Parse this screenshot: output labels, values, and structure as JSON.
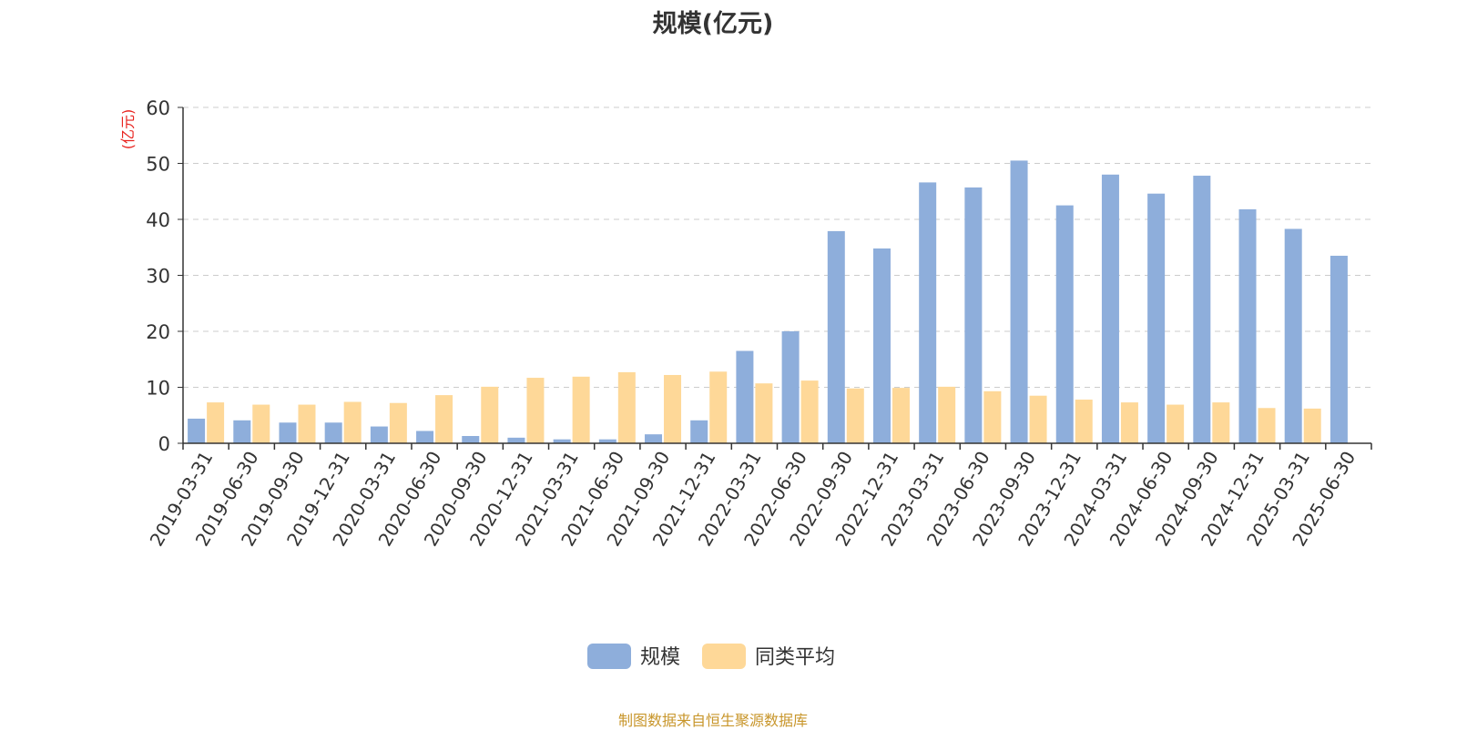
{
  "chart_data": {
    "type": "bar",
    "title": "规模(亿元)",
    "ylabel": "(亿元)",
    "ylim": [
      0,
      60
    ],
    "yticks": [
      0,
      10,
      20,
      30,
      40,
      50,
      60
    ],
    "grid": true,
    "legend_position": "bottom",
    "categories": [
      "2019-03-31",
      "2019-06-30",
      "2019-09-30",
      "2019-12-31",
      "2020-03-31",
      "2020-06-30",
      "2020-09-30",
      "2020-12-31",
      "2021-03-31",
      "2021-06-30",
      "2021-09-30",
      "2021-12-31",
      "2022-03-31",
      "2022-06-30",
      "2022-09-30",
      "2022-12-31",
      "2023-03-31",
      "2023-06-30",
      "2023-09-30",
      "2023-12-31",
      "2024-03-31",
      "2024-06-30",
      "2024-09-30",
      "2024-12-31",
      "2025-03-31",
      "2025-06-30"
    ],
    "series": [
      {
        "name": "规模",
        "color": "#8eaedb",
        "values": [
          4.4,
          4.1,
          3.7,
          3.7,
          3.0,
          2.2,
          1.3,
          1.0,
          0.7,
          0.7,
          1.6,
          4.1,
          16.5,
          20.0,
          37.9,
          34.8,
          46.6,
          45.7,
          50.5,
          42.5,
          48.0,
          44.6,
          47.8,
          41.8,
          38.3,
          33.5
        ]
      },
      {
        "name": "同类平均",
        "color": "#fed898",
        "values": [
          7.3,
          6.9,
          6.9,
          7.4,
          7.2,
          8.6,
          10.1,
          11.7,
          11.9,
          12.7,
          12.2,
          12.8,
          10.7,
          11.2,
          9.8,
          9.9,
          10.1,
          9.3,
          8.5,
          7.8,
          7.3,
          6.9,
          7.3,
          6.3,
          6.2,
          null
        ]
      }
    ]
  },
  "source_note": "制图数据来自恒生聚源数据库"
}
